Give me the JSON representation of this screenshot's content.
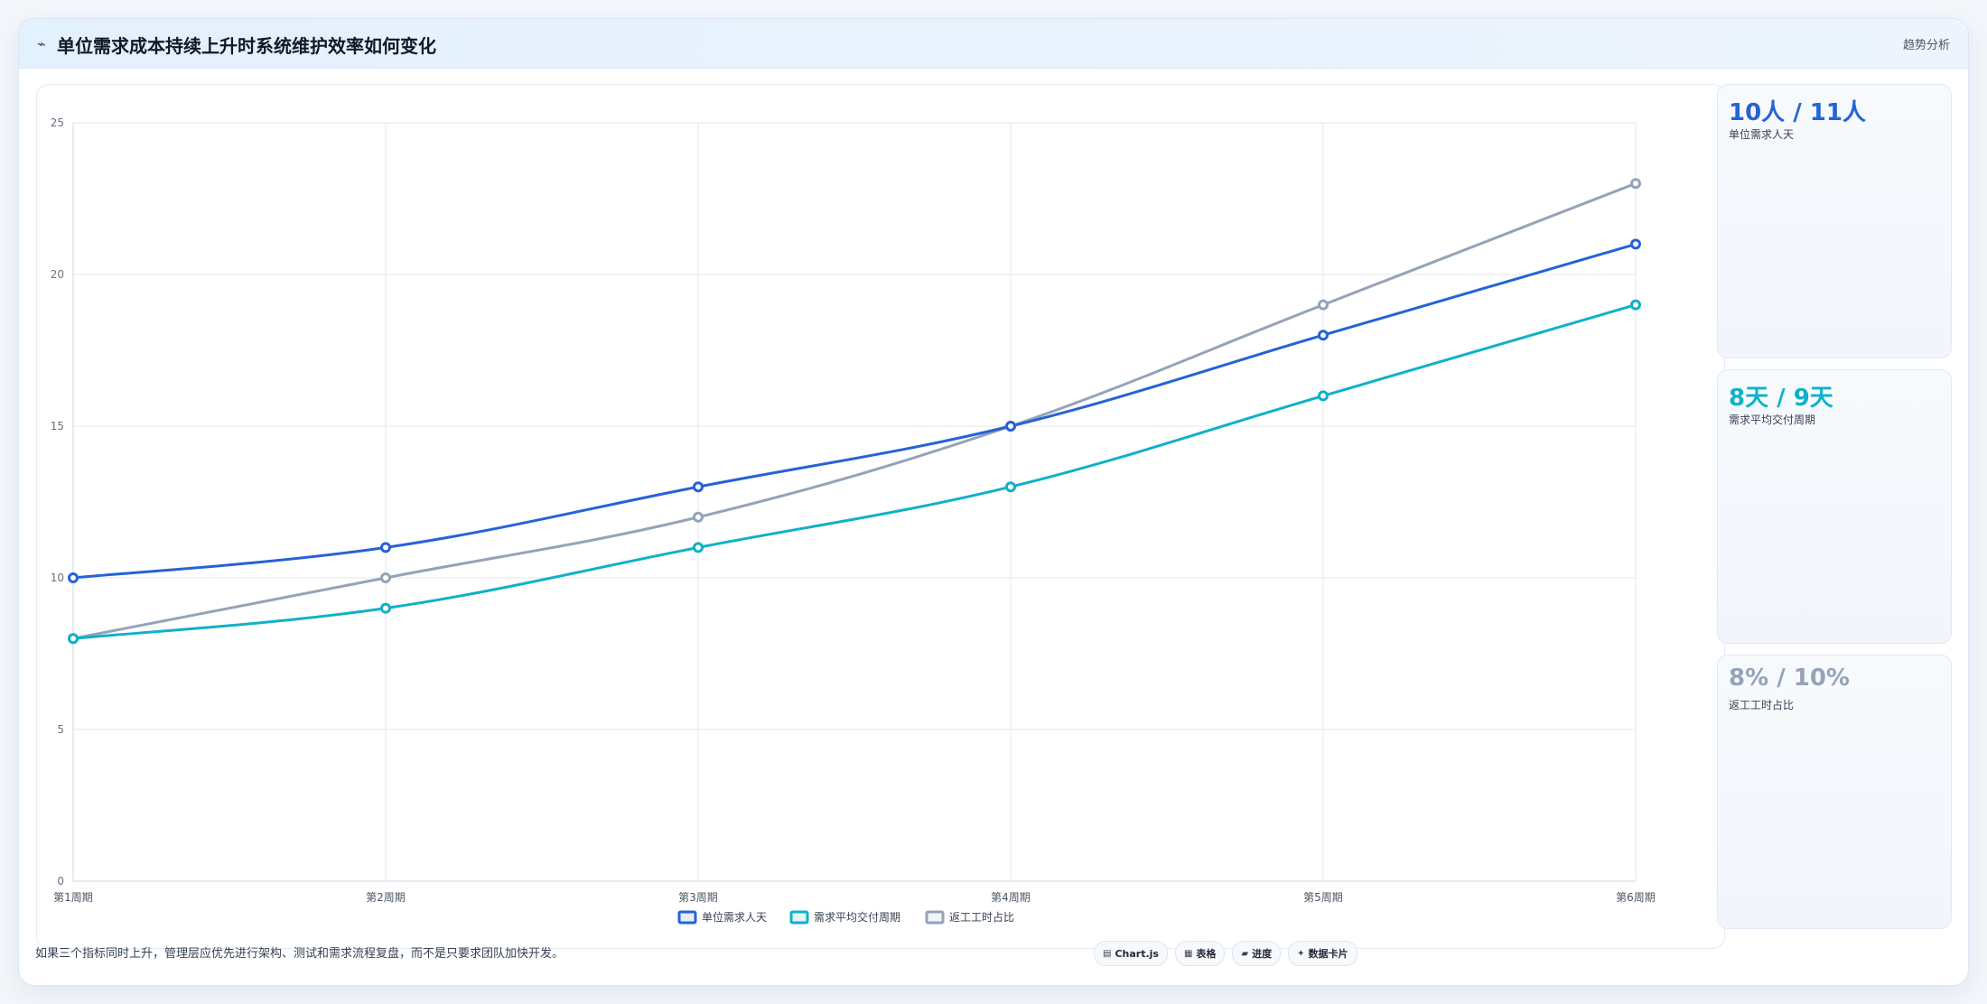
{
  "header": {
    "icon": "trend-line-icon",
    "title": "单位需求成本持续上升时系统维护效率如何变化",
    "right_label": "趋势分析"
  },
  "kpis": [
    {
      "value": "10人 / 11人",
      "label": "单位需求人天",
      "color": "#2563d6"
    },
    {
      "value": "8天 / 9天",
      "label": "需求平均交付周期",
      "color": "#0fb1c8"
    },
    {
      "value": "8% / 10%",
      "label": "返工工时占比",
      "color": "#94a3b8"
    }
  ],
  "footnote": "如果三个指标同时上升，管理层应优先进行架构、测试和需求流程复盘，而不是只要求团队加快开发。",
  "tags": [
    {
      "icon": "chart-icon",
      "glyph": "▤",
      "label": "Chart.js"
    },
    {
      "icon": "table-icon",
      "glyph": "▦",
      "label": "表格"
    },
    {
      "icon": "progress-icon",
      "glyph": "▰",
      "label": "进度"
    },
    {
      "icon": "card-icon",
      "glyph": "✦",
      "label": "数据卡片"
    }
  ],
  "chart_data": {
    "type": "line",
    "categories": [
      "第1周期",
      "第2周期",
      "第3周期",
      "第4周期",
      "第5周期",
      "第6周期"
    ],
    "series": [
      {
        "name": "单位需求人天",
        "color": "#2563d6",
        "values": [
          10,
          11,
          13,
          15,
          18,
          21
        ]
      },
      {
        "name": "需求平均交付周期",
        "color": "#0fb1c8",
        "values": [
          8,
          9,
          11,
          13,
          16,
          19
        ]
      },
      {
        "name": "返工工时占比",
        "color": "#94a3b8",
        "values": [
          8,
          10,
          12,
          15,
          19,
          23
        ]
      }
    ],
    "ylim": [
      0,
      25
    ],
    "yticks": [
      0,
      5,
      10,
      15,
      20,
      25
    ],
    "grid": true,
    "legend": "bottom-center",
    "xlabel": "",
    "ylabel": ""
  }
}
